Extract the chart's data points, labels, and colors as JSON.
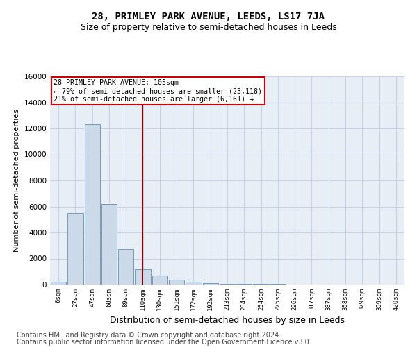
{
  "title": "28, PRIMLEY PARK AVENUE, LEEDS, LS17 7JA",
  "subtitle": "Size of property relative to semi-detached houses in Leeds",
  "xlabel": "Distribution of semi-detached houses by size in Leeds",
  "ylabel": "Number of semi-detached properties",
  "bin_labels": [
    "6sqm",
    "27sqm",
    "47sqm",
    "68sqm",
    "89sqm",
    "110sqm",
    "130sqm",
    "151sqm",
    "172sqm",
    "192sqm",
    "213sqm",
    "234sqm",
    "254sqm",
    "275sqm",
    "296sqm",
    "317sqm",
    "337sqm",
    "358sqm",
    "379sqm",
    "399sqm",
    "420sqm"
  ],
  "bar_heights": [
    200,
    5500,
    12300,
    6200,
    2700,
    1200,
    700,
    400,
    200,
    100,
    80,
    60,
    50,
    40,
    20,
    10,
    5,
    3,
    2,
    1,
    0
  ],
  "bar_color": "#ccd9e8",
  "bar_edgecolor": "#7799bb",
  "marker_bin_index": 4.97,
  "marker_color": "#8b0000",
  "annotation_title": "28 PRIMLEY PARK AVENUE: 105sqm",
  "annotation_line1": "← 79% of semi-detached houses are smaller (23,118)",
  "annotation_line2": "21% of semi-detached houses are larger (6,161) →",
  "annotation_box_color": "#ffffff",
  "annotation_box_edgecolor": "#cc0000",
  "ylim": [
    0,
    16000
  ],
  "yticks": [
    0,
    2000,
    4000,
    6000,
    8000,
    10000,
    12000,
    14000,
    16000
  ],
  "grid_color": "#c8d4e4",
  "background_color": "#e8eef6",
  "footer1": "Contains HM Land Registry data © Crown copyright and database right 2024.",
  "footer2": "Contains public sector information licensed under the Open Government Licence v3.0.",
  "title_fontsize": 10,
  "subtitle_fontsize": 9,
  "xlabel_fontsize": 9,
  "ylabel_fontsize": 8,
  "footer_fontsize": 7
}
